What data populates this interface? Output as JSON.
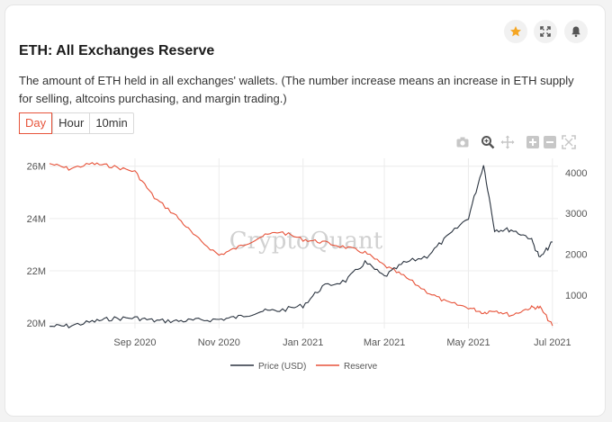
{
  "header": {
    "title": "ETH: All Exchanges Reserve",
    "description": "The amount of ETH held in all exchanges' wallets. (The number increase means an increase in ETH supply for selling, altcoins purchasing, and margin trading.)"
  },
  "header_buttons": [
    {
      "icon": "star-icon",
      "color": "#f5a623"
    },
    {
      "icon": "fullscreen-icon",
      "color": "#555555"
    },
    {
      "icon": "bell-icon",
      "color": "#555555"
    }
  ],
  "range_tabs": [
    {
      "label": "Day",
      "active": true
    },
    {
      "label": "Hour",
      "active": false
    },
    {
      "label": "10min",
      "active": false
    }
  ],
  "modebar": [
    "camera-icon",
    "zoom-icon",
    "pan-icon",
    "zoom-in-icon",
    "zoom-out-icon",
    "autoscale-icon"
  ],
  "watermark": "CryptoQuant",
  "colors": {
    "price": "#2b3440",
    "reserve": "#e7543b",
    "accent": "#e7543b"
  },
  "chart_data": {
    "type": "line",
    "x": [
      "2020-07-01",
      "2020-07-15",
      "2020-08-01",
      "2020-08-15",
      "2020-09-01",
      "2020-09-15",
      "2020-10-01",
      "2020-10-15",
      "2020-11-01",
      "2020-11-15",
      "2020-12-01",
      "2020-12-15",
      "2021-01-01",
      "2021-01-15",
      "2021-02-01",
      "2021-02-15",
      "2021-03-01",
      "2021-03-15",
      "2021-04-01",
      "2021-04-15",
      "2021-05-01",
      "2021-05-12",
      "2021-05-20",
      "2021-06-01",
      "2021-06-15",
      "2021-06-22",
      "2021-07-01"
    ],
    "series": [
      {
        "name": "Price (USD)",
        "axis": "right",
        "color": "#2b3440",
        "values": [
          230,
          240,
          345,
          420,
          440,
          370,
          360,
          380,
          400,
          460,
          600,
          620,
          740,
          1200,
          1350,
          1800,
          1450,
          1780,
          1950,
          2400,
          2900,
          4200,
          2600,
          2600,
          2400,
          1900,
          2300
        ]
      },
      {
        "name": "Reserve",
        "axis": "left",
        "color": "#e7543b",
        "values": [
          26.1,
          25.9,
          26.1,
          26.0,
          25.8,
          24.8,
          24.1,
          23.3,
          22.6,
          22.9,
          23.3,
          23.5,
          23.2,
          23.1,
          22.9,
          22.7,
          22.2,
          21.8,
          21.2,
          20.8,
          20.6,
          20.4,
          20.5,
          20.3,
          20.6,
          20.6,
          19.9
        ]
      }
    ],
    "x_ticks": [
      "Sep 2020",
      "Nov 2020",
      "Jan 2021",
      "Mar 2021",
      "May 2021",
      "Jul 2021"
    ],
    "y_left_ticks": [
      "20M",
      "22M",
      "24M",
      "26M"
    ],
    "y_right_ticks": [
      "1000",
      "2000",
      "3000",
      "4000"
    ],
    "y_left_range": [
      19800000,
      26300000
    ],
    "y_right_range": [
      180,
      4350
    ],
    "legend": "bottom-center",
    "grid": true
  }
}
